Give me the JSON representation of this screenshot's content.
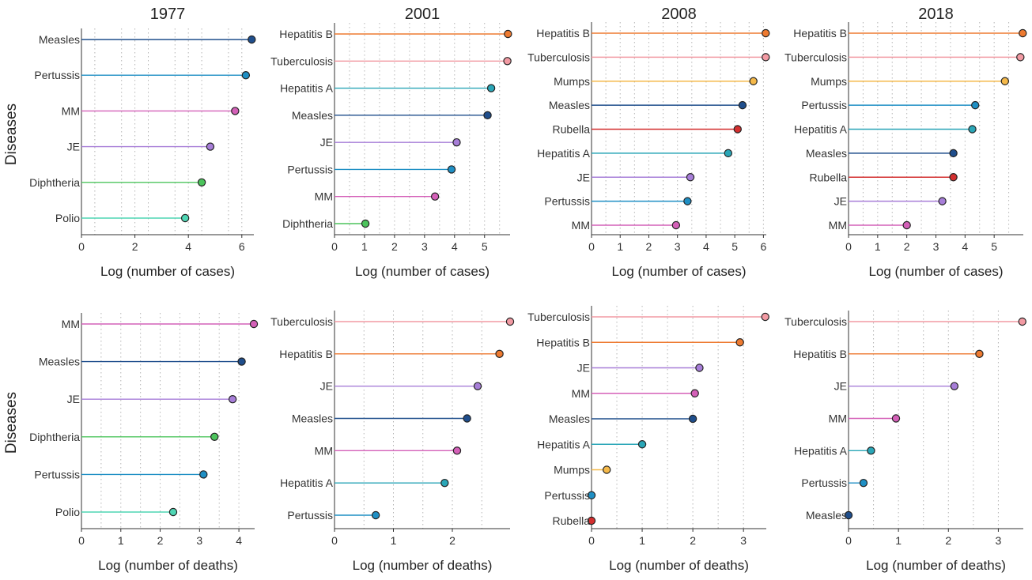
{
  "figure_ylabel": "Diseases",
  "chart_data": [
    {
      "type": "lollipop",
      "title": "1977",
      "xlabel": "Log (number of cases)",
      "ylabel": "Diseases",
      "xlim": [
        0,
        6.45
      ],
      "xticks": [
        0,
        2,
        4,
        6
      ],
      "grid": "vertical-dotted",
      "points": [
        {
          "label": "Measles",
          "value": 6.37,
          "color": "#1f4e8c"
        },
        {
          "label": "Pertussis",
          "value": 6.15,
          "color": "#1f8fc4"
        },
        {
          "label": "MM",
          "value": 5.75,
          "color": "#d460b8"
        },
        {
          "label": "JE",
          "value": 4.82,
          "color": "#a77ed8"
        },
        {
          "label": "Diphtheria",
          "value": 4.5,
          "color": "#4cc45c"
        },
        {
          "label": "Polio",
          "value": 3.88,
          "color": "#4fd6b4"
        }
      ]
    },
    {
      "type": "lollipop",
      "title": "2001",
      "xlabel": "Log (number of cases)",
      "xlim": [
        0,
        5.85
      ],
      "xticks": [
        0,
        1,
        2,
        3,
        4,
        5
      ],
      "grid": "vertical-dotted",
      "points": [
        {
          "label": "Hepatitis B",
          "value": 5.78,
          "color": "#ee7a30"
        },
        {
          "label": "Tuberculosis",
          "value": 5.76,
          "color": "#f29aa3"
        },
        {
          "label": "Hepatitis A",
          "value": 5.22,
          "color": "#2aa6b7"
        },
        {
          "label": "Measles",
          "value": 5.1,
          "color": "#1f4e8c"
        },
        {
          "label": "JE",
          "value": 4.07,
          "color": "#a77ed8"
        },
        {
          "label": "Pertussis",
          "value": 3.9,
          "color": "#1f8fc4"
        },
        {
          "label": "MM",
          "value": 3.35,
          "color": "#d460b8"
        },
        {
          "label": "Diphtheria",
          "value": 1.03,
          "color": "#4cc45c"
        }
      ]
    },
    {
      "type": "lollipop",
      "title": "2008",
      "xlabel": "Log (number of cases)",
      "xlim": [
        0,
        6.1
      ],
      "xticks": [
        0,
        1,
        2,
        3,
        4,
        5,
        6
      ],
      "grid": "vertical-dotted",
      "points": [
        {
          "label": "Hepatitis B",
          "value": 6.08,
          "color": "#ee7a30"
        },
        {
          "label": "Tuberculosis",
          "value": 6.08,
          "color": "#f29aa3"
        },
        {
          "label": "Mumps",
          "value": 5.65,
          "color": "#f5b94a"
        },
        {
          "label": "Measles",
          "value": 5.27,
          "color": "#1f4e8c"
        },
        {
          "label": "Rubella",
          "value": 5.1,
          "color": "#d32f2f"
        },
        {
          "label": "Hepatitis A",
          "value": 4.77,
          "color": "#2aa6b7"
        },
        {
          "label": "JE",
          "value": 3.45,
          "color": "#a77ed8"
        },
        {
          "label": "Pertussis",
          "value": 3.35,
          "color": "#1f8fc4"
        },
        {
          "label": "MM",
          "value": 2.95,
          "color": "#d460b8"
        }
      ]
    },
    {
      "type": "lollipop",
      "title": "2018",
      "xlabel": "Log (number of cases)",
      "xlim": [
        0,
        6.0
      ],
      "xticks": [
        0,
        1,
        2,
        3,
        4,
        5
      ],
      "grid": "vertical-dotted",
      "points": [
        {
          "label": "Hepatitis B",
          "value": 5.98,
          "color": "#ee7a30"
        },
        {
          "label": "Tuberculosis",
          "value": 5.9,
          "color": "#f29aa3"
        },
        {
          "label": "Mumps",
          "value": 5.37,
          "color": "#f5b94a"
        },
        {
          "label": "Pertussis",
          "value": 4.35,
          "color": "#1f8fc4"
        },
        {
          "label": "Hepatitis A",
          "value": 4.25,
          "color": "#2aa6b7"
        },
        {
          "label": "Measles",
          "value": 3.6,
          "color": "#1f4e8c"
        },
        {
          "label": "Rubella",
          "value": 3.6,
          "color": "#d32f2f"
        },
        {
          "label": "JE",
          "value": 3.22,
          "color": "#a77ed8"
        },
        {
          "label": "MM",
          "value": 2.0,
          "color": "#d460b8"
        }
      ]
    },
    {
      "type": "lollipop",
      "title": "",
      "xlabel": "Log (number of deaths)",
      "ylabel": "Diseases",
      "xlim": [
        0,
        4.4
      ],
      "xticks": [
        0,
        1,
        2,
        3,
        4
      ],
      "grid": "vertical-dotted",
      "points": [
        {
          "label": "MM",
          "value": 4.38,
          "color": "#d460b8"
        },
        {
          "label": "Measles",
          "value": 4.07,
          "color": "#1f4e8c"
        },
        {
          "label": "JE",
          "value": 3.84,
          "color": "#a77ed8"
        },
        {
          "label": "Diphtheria",
          "value": 3.38,
          "color": "#4cc45c"
        },
        {
          "label": "Pertussis",
          "value": 3.1,
          "color": "#1f8fc4"
        },
        {
          "label": "Polio",
          "value": 2.33,
          "color": "#4fd6b4"
        }
      ]
    },
    {
      "type": "lollipop",
      "title": "",
      "xlabel": "Log (number of deaths)",
      "xlim": [
        0,
        2.98
      ],
      "xticks": [
        0,
        1,
        2
      ],
      "grid": "vertical-dotted",
      "points": [
        {
          "label": "Tuberculosis",
          "value": 2.98,
          "color": "#f29aa3"
        },
        {
          "label": "Hepatitis B",
          "value": 2.8,
          "color": "#ee7a30"
        },
        {
          "label": "JE",
          "value": 2.43,
          "color": "#a77ed8"
        },
        {
          "label": "Measles",
          "value": 2.25,
          "color": "#1f4e8c"
        },
        {
          "label": "MM",
          "value": 2.08,
          "color": "#d460b8"
        },
        {
          "label": "Hepatitis A",
          "value": 1.87,
          "color": "#2aa6b7"
        },
        {
          "label": "Pertussis",
          "value": 0.7,
          "color": "#1f8fc4"
        }
      ]
    },
    {
      "type": "lollipop",
      "title": "",
      "xlabel": "Log (number of deaths)",
      "xlim": [
        0,
        3.45
      ],
      "xticks": [
        0,
        1,
        2,
        3
      ],
      "grid": "vertical-dotted",
      "points": [
        {
          "label": "Tuberculosis",
          "value": 3.43,
          "color": "#f29aa3"
        },
        {
          "label": "Hepatitis B",
          "value": 2.93,
          "color": "#ee7a30"
        },
        {
          "label": "JE",
          "value": 2.13,
          "color": "#a77ed8"
        },
        {
          "label": "MM",
          "value": 2.04,
          "color": "#d460b8"
        },
        {
          "label": "Measles",
          "value": 2.0,
          "color": "#1f4e8c"
        },
        {
          "label": "Hepatitis A",
          "value": 1.0,
          "color": "#2aa6b7"
        },
        {
          "label": "Mumps",
          "value": 0.3,
          "color": "#f5b94a"
        },
        {
          "label": "Pertussis",
          "value": 0.0,
          "color": "#1f8fc4"
        },
        {
          "label": "Rubella",
          "value": 0.0,
          "color": "#d32f2f"
        }
      ]
    },
    {
      "type": "lollipop",
      "title": "",
      "xlabel": "Log (number of deaths)",
      "xlim": [
        0,
        3.5
      ],
      "xticks": [
        0,
        1,
        2,
        3
      ],
      "grid": "vertical-dotted",
      "points": [
        {
          "label": "Tuberculosis",
          "value": 3.48,
          "color": "#f29aa3"
        },
        {
          "label": "Hepatitis B",
          "value": 2.62,
          "color": "#ee7a30"
        },
        {
          "label": "JE",
          "value": 2.12,
          "color": "#a77ed8"
        },
        {
          "label": "MM",
          "value": 0.95,
          "color": "#d460b8"
        },
        {
          "label": "Hepatitis A",
          "value": 0.45,
          "color": "#2aa6b7"
        },
        {
          "label": "Pertussis",
          "value": 0.3,
          "color": "#1f8fc4"
        },
        {
          "label": "Measles",
          "value": 0.0,
          "color": "#1f4e8c"
        }
      ]
    }
  ]
}
